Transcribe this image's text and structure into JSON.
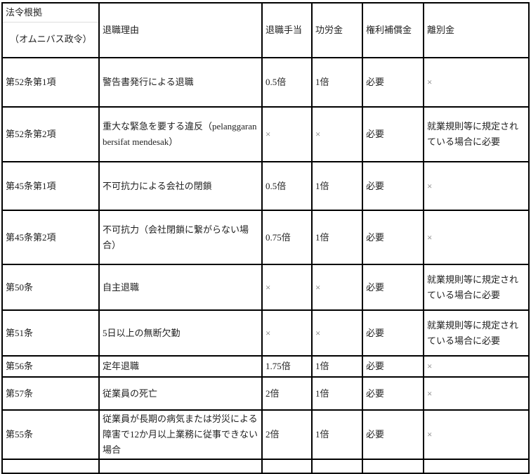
{
  "header": {
    "legal_basis": "法令根拠",
    "legal_basis_sub": "（オムニバス政令）",
    "reason": "退職理由",
    "severance": "退職手当",
    "service_award": "功労金",
    "rights_compensation": "権利補償金",
    "separation_pay": "離別金"
  },
  "rows": [
    {
      "basis": "第52条第1項",
      "reason": "警告書発行による退職",
      "severance": "0.5倍",
      "service": "1倍",
      "rights": "必要",
      "separation": "×"
    },
    {
      "basis": "第52条第2項",
      "reason": "重大な緊急を要する違反（pelanggaran bersifat mendesak）",
      "severance": "×",
      "service": "×",
      "rights": "必要",
      "separation": "就業規則等に規定されている場合に必要"
    },
    {
      "basis": "第45条第1項",
      "reason": "不可抗力による会社の閉鎖",
      "severance": "0.5倍",
      "service": "1倍",
      "rights": "必要",
      "separation": "×"
    },
    {
      "basis": "第45条第2項",
      "reason": "不可抗力（会社閉鎖に繋がらない場合）",
      "severance": "0.75倍",
      "service": "1倍",
      "rights": "必要",
      "separation": "×"
    },
    {
      "basis": "第50条",
      "reason": "自主退職",
      "severance": "×",
      "service": "×",
      "rights": "必要",
      "separation": "就業規則等に規定されている場合に必要"
    },
    {
      "basis": "第51条",
      "reason": "5日以上の無断欠勤",
      "severance": "×",
      "service": "×",
      "rights": "必要",
      "separation": "就業規則等に規定されている場合に必要"
    },
    {
      "basis": "第56条",
      "reason": "定年退職",
      "severance": "1.75倍",
      "service": " 1倍",
      "rights": "必要",
      "separation": "×"
    },
    {
      "basis": "第57条",
      "reason": "従業員の死亡",
      "severance": "2倍",
      "service": "1倍",
      "rights": "必要",
      "separation": "×"
    },
    {
      "basis": "第55条",
      "reason": "従業員が長期の病気または労災による障害で12か月以上業務に従事できない場合",
      "severance": "2倍",
      "service": "1倍",
      "rights": "必要",
      "separation": "×"
    }
  ]
}
